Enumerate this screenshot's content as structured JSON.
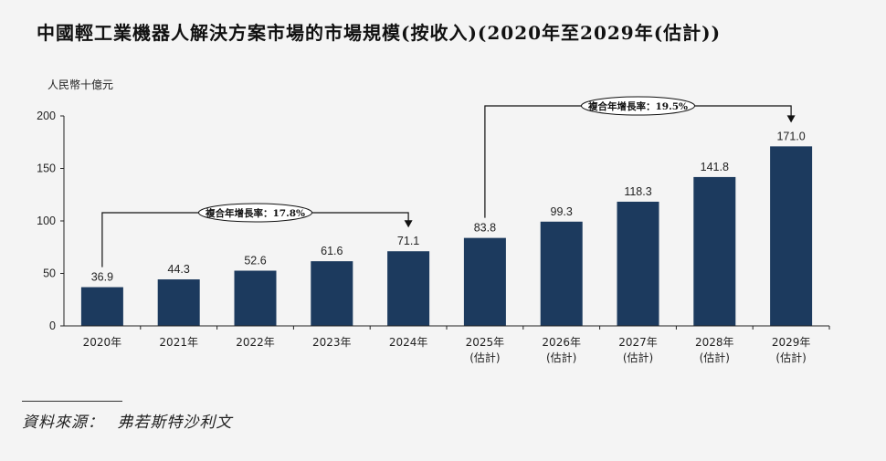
{
  "title": "中國輕工業機器人解決方案市場的市場規模(按收入)(2020年至2029年(估計))",
  "source": {
    "label": "資料來源：",
    "value": "弗若斯特沙利文"
  },
  "colors": {
    "bar": "#1c3a5e",
    "axis": "#222222",
    "text": "#222222"
  },
  "chart_data": {
    "type": "bar",
    "title": "中國輕工業機器人解決方案市場的市場規模(按收入)(2020年至2029年(估計))",
    "ylabel": "人民幣十億元",
    "xlabel": "",
    "ylim": [
      0,
      200
    ],
    "yticks": [
      0,
      50,
      100,
      150,
      200
    ],
    "grid": false,
    "categories": [
      "2020年",
      "2021年",
      "2022年",
      "2023年",
      "2024年",
      "2025年",
      "2026年",
      "2027年",
      "2028年",
      "2029年"
    ],
    "category_sublabels": [
      "",
      "",
      "",
      "",
      "",
      "(估計)",
      "(估計)",
      "(估計)",
      "(估計)",
      "(估計)"
    ],
    "values": [
      36.9,
      44.3,
      52.6,
      61.6,
      71.1,
      83.8,
      99.3,
      118.3,
      141.8,
      171.0
    ],
    "value_labels": [
      "36.9",
      "44.3",
      "52.6",
      "61.6",
      "71.1",
      "83.8",
      "99.3",
      "118.3",
      "141.8",
      "171.0"
    ],
    "annotations": [
      {
        "text": "複合年增長率：17.8%",
        "from_index": 0,
        "to_index": 4
      },
      {
        "text": "複合年增長率：19.5%",
        "from_index": 5,
        "to_index": 9
      }
    ]
  }
}
